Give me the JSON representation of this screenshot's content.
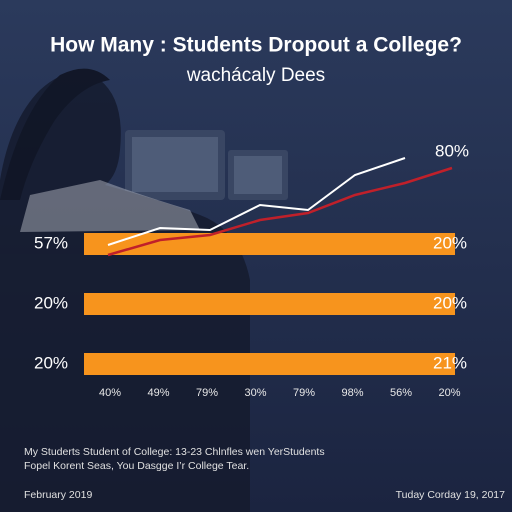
{
  "header": {
    "title": "How Many : Students Dropout a College?",
    "subtitle": "wachácaly Dees"
  },
  "top_label": "80%",
  "rows": [
    {
      "left": "57%",
      "right": "20%"
    },
    {
      "left": "20%",
      "right": "20%"
    },
    {
      "left": "20%",
      "right": "21%"
    }
  ],
  "x_labels": [
    "40%",
    "49%",
    "79%",
    "30%",
    "79%",
    "98%",
    "56%",
    "20%"
  ],
  "note": [
    "My Studerts Student of College: 13-23 Chlnfles wen YerStudents",
    "Fopel Korent Seas, You Dasgge I’r College Tear."
  ],
  "footer": {
    "left": "February 2019",
    "right": "Tuday Corday 19, 2017"
  }
}
